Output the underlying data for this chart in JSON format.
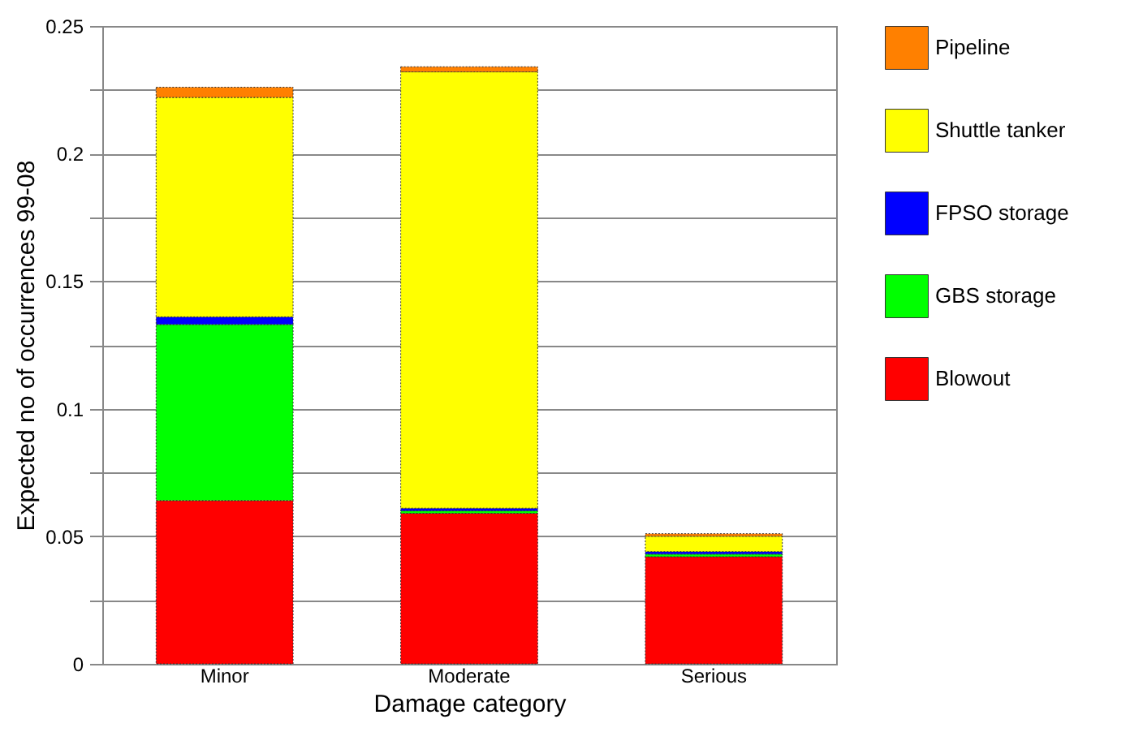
{
  "chart_data": {
    "type": "bar",
    "stacked": true,
    "xlabel": "Damage category",
    "ylabel": "Expected no of occurrences 99-08",
    "categories": [
      "Minor",
      "Moderate",
      "Serious"
    ],
    "series": [
      {
        "name": "Blowout",
        "color": "#ff0000",
        "values": [
          0.064,
          0.059,
          0.042
        ]
      },
      {
        "name": "GBS storage",
        "color": "#00ff00",
        "values": [
          0.069,
          0.001,
          0.001
        ]
      },
      {
        "name": "FPSO storage",
        "color": "#0000ff",
        "values": [
          0.003,
          0.001,
          0.001
        ]
      },
      {
        "name": "Shuttle tanker",
        "color": "#ffff00",
        "values": [
          0.086,
          0.171,
          0.006
        ]
      },
      {
        "name": "Pipeline",
        "color": "#ff8000",
        "values": [
          0.004,
          0.002,
          0.001
        ]
      }
    ],
    "ylim": [
      0,
      0.25
    ],
    "yticks": [
      0,
      {
        "value": 0.025,
        "label": null
      },
      0.05,
      {
        "value": 0.075,
        "label": null
      },
      0.1,
      {
        "value": 0.125,
        "label": null
      },
      0.15,
      {
        "value": 0.175,
        "label": null
      },
      0.2,
      {
        "value": 0.225,
        "label": null
      },
      0.25
    ],
    "grid": "y",
    "legend": "right"
  }
}
